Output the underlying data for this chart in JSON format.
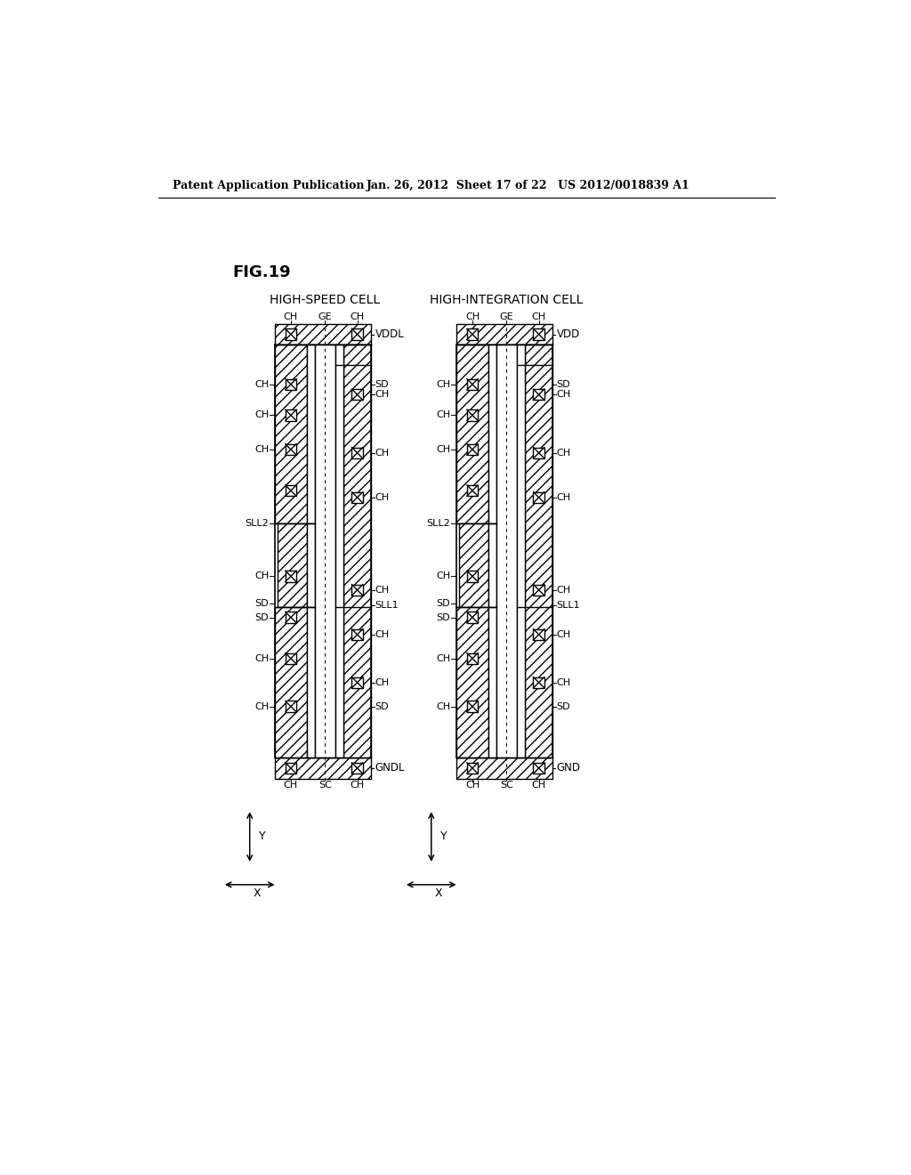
{
  "header_left": "Patent Application Publication",
  "header_mid": "Jan. 26, 2012  Sheet 17 of 22",
  "header_right": "US 2012/0018839 A1",
  "fig_label": "FIG.19",
  "cell1_title": "HIGH-SPEED CELL",
  "cell2_title": "HIGH-INTEGRATION CELL",
  "bg": "#ffffff",
  "lc": "#000000"
}
